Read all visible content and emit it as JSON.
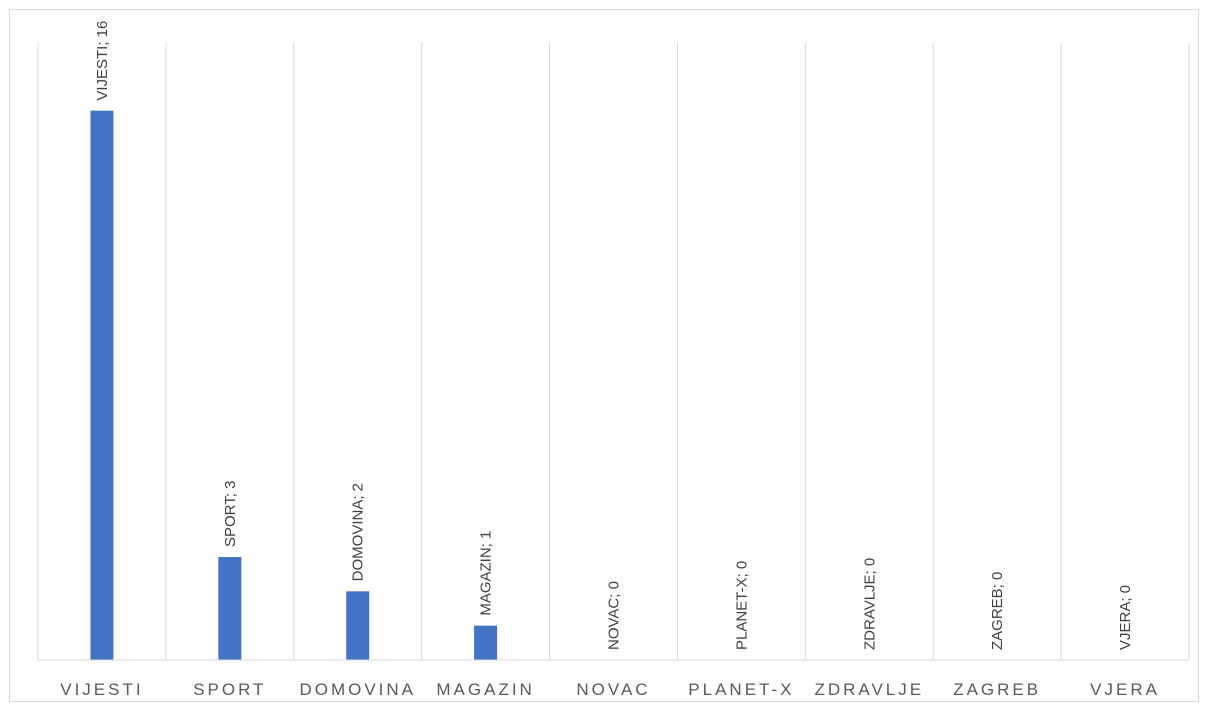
{
  "chart_data": {
    "type": "bar",
    "categories": [
      "VIJESTI",
      "SPORT",
      "DOMOVINA",
      "MAGAZIN",
      "NOVAC",
      "PLANET-X",
      "ZDRAVLJE",
      "ZAGREB",
      "VJERA"
    ],
    "values": [
      16,
      3,
      2,
      1,
      0,
      0,
      0,
      0,
      0
    ],
    "data_labels": [
      "VIJESTI; 16",
      "SPORT; 3",
      "DOMOVINA; 2",
      "MAGAZIN; 1",
      "NOVAC; 0",
      "PLANET-X; 0",
      "ZDRAVLJE; 0",
      "ZAGREB; 0",
      "VJERA; 0"
    ],
    "title": "",
    "xlabel": "",
    "ylabel": "",
    "ylim": [
      0,
      18
    ],
    "grid": "vertical category separators",
    "legend": "none",
    "bar_color": "#4472c4"
  }
}
